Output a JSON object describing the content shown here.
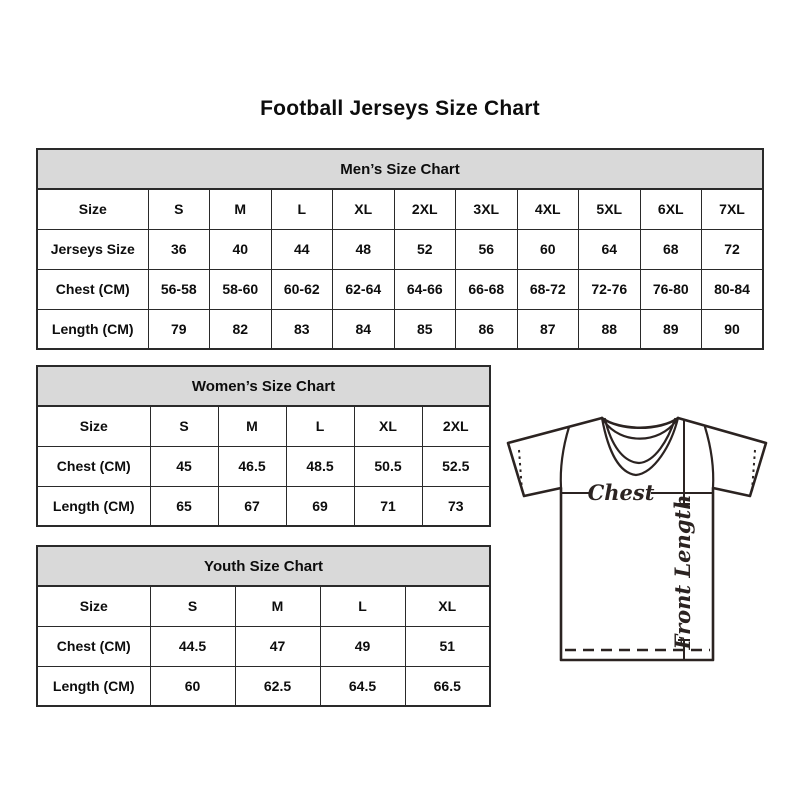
{
  "page_title": "Football Jerseys Size Chart",
  "colors": {
    "header_bg": "#d9d9d9",
    "border": "#2a2a2a",
    "text": "#0d0d0d",
    "jersey_line": "#2b2321",
    "background": "#ffffff"
  },
  "tables": [
    {
      "id": "mens",
      "title": "Men’s Size Chart",
      "rows": [
        {
          "label": "Size",
          "values": [
            "S",
            "M",
            "L",
            "XL",
            "2XL",
            "3XL",
            "4XL",
            "5XL",
            "6XL",
            "7XL"
          ]
        },
        {
          "label": "Jerseys Size",
          "values": [
            "36",
            "40",
            "44",
            "48",
            "52",
            "56",
            "60",
            "64",
            "68",
            "72"
          ]
        },
        {
          "label": "Chest (CM)",
          "values": [
            "56-58",
            "58-60",
            "60-62",
            "62-64",
            "64-66",
            "66-68",
            "68-72",
            "72-76",
            "76-80",
            "80-84"
          ]
        },
        {
          "label": "Length (CM)",
          "values": [
            "79",
            "82",
            "83",
            "84",
            "85",
            "86",
            "87",
            "88",
            "89",
            "90"
          ]
        }
      ]
    },
    {
      "id": "womens",
      "title": "Women’s Size Chart",
      "rows": [
        {
          "label": "Size",
          "values": [
            "S",
            "M",
            "L",
            "XL",
            "2XL"
          ]
        },
        {
          "label": "Chest (CM)",
          "values": [
            "45",
            "46.5",
            "48.5",
            "50.5",
            "52.5"
          ]
        },
        {
          "label": "Length (CM)",
          "values": [
            "65",
            "67",
            "69",
            "71",
            "73"
          ]
        }
      ]
    },
    {
      "id": "youth",
      "title": "Youth Size Chart",
      "rows": [
        {
          "label": "Size",
          "values": [
            "S",
            "M",
            "L",
            "XL"
          ]
        },
        {
          "label": "Chest (CM)",
          "values": [
            "44.5",
            "47",
            "49",
            "51"
          ]
        },
        {
          "label": "Length (CM)",
          "values": [
            "60",
            "62.5",
            "64.5",
            "66.5"
          ]
        }
      ]
    }
  ],
  "diagram": {
    "chest_label": "Chest",
    "front_length_label": "Front Length"
  }
}
